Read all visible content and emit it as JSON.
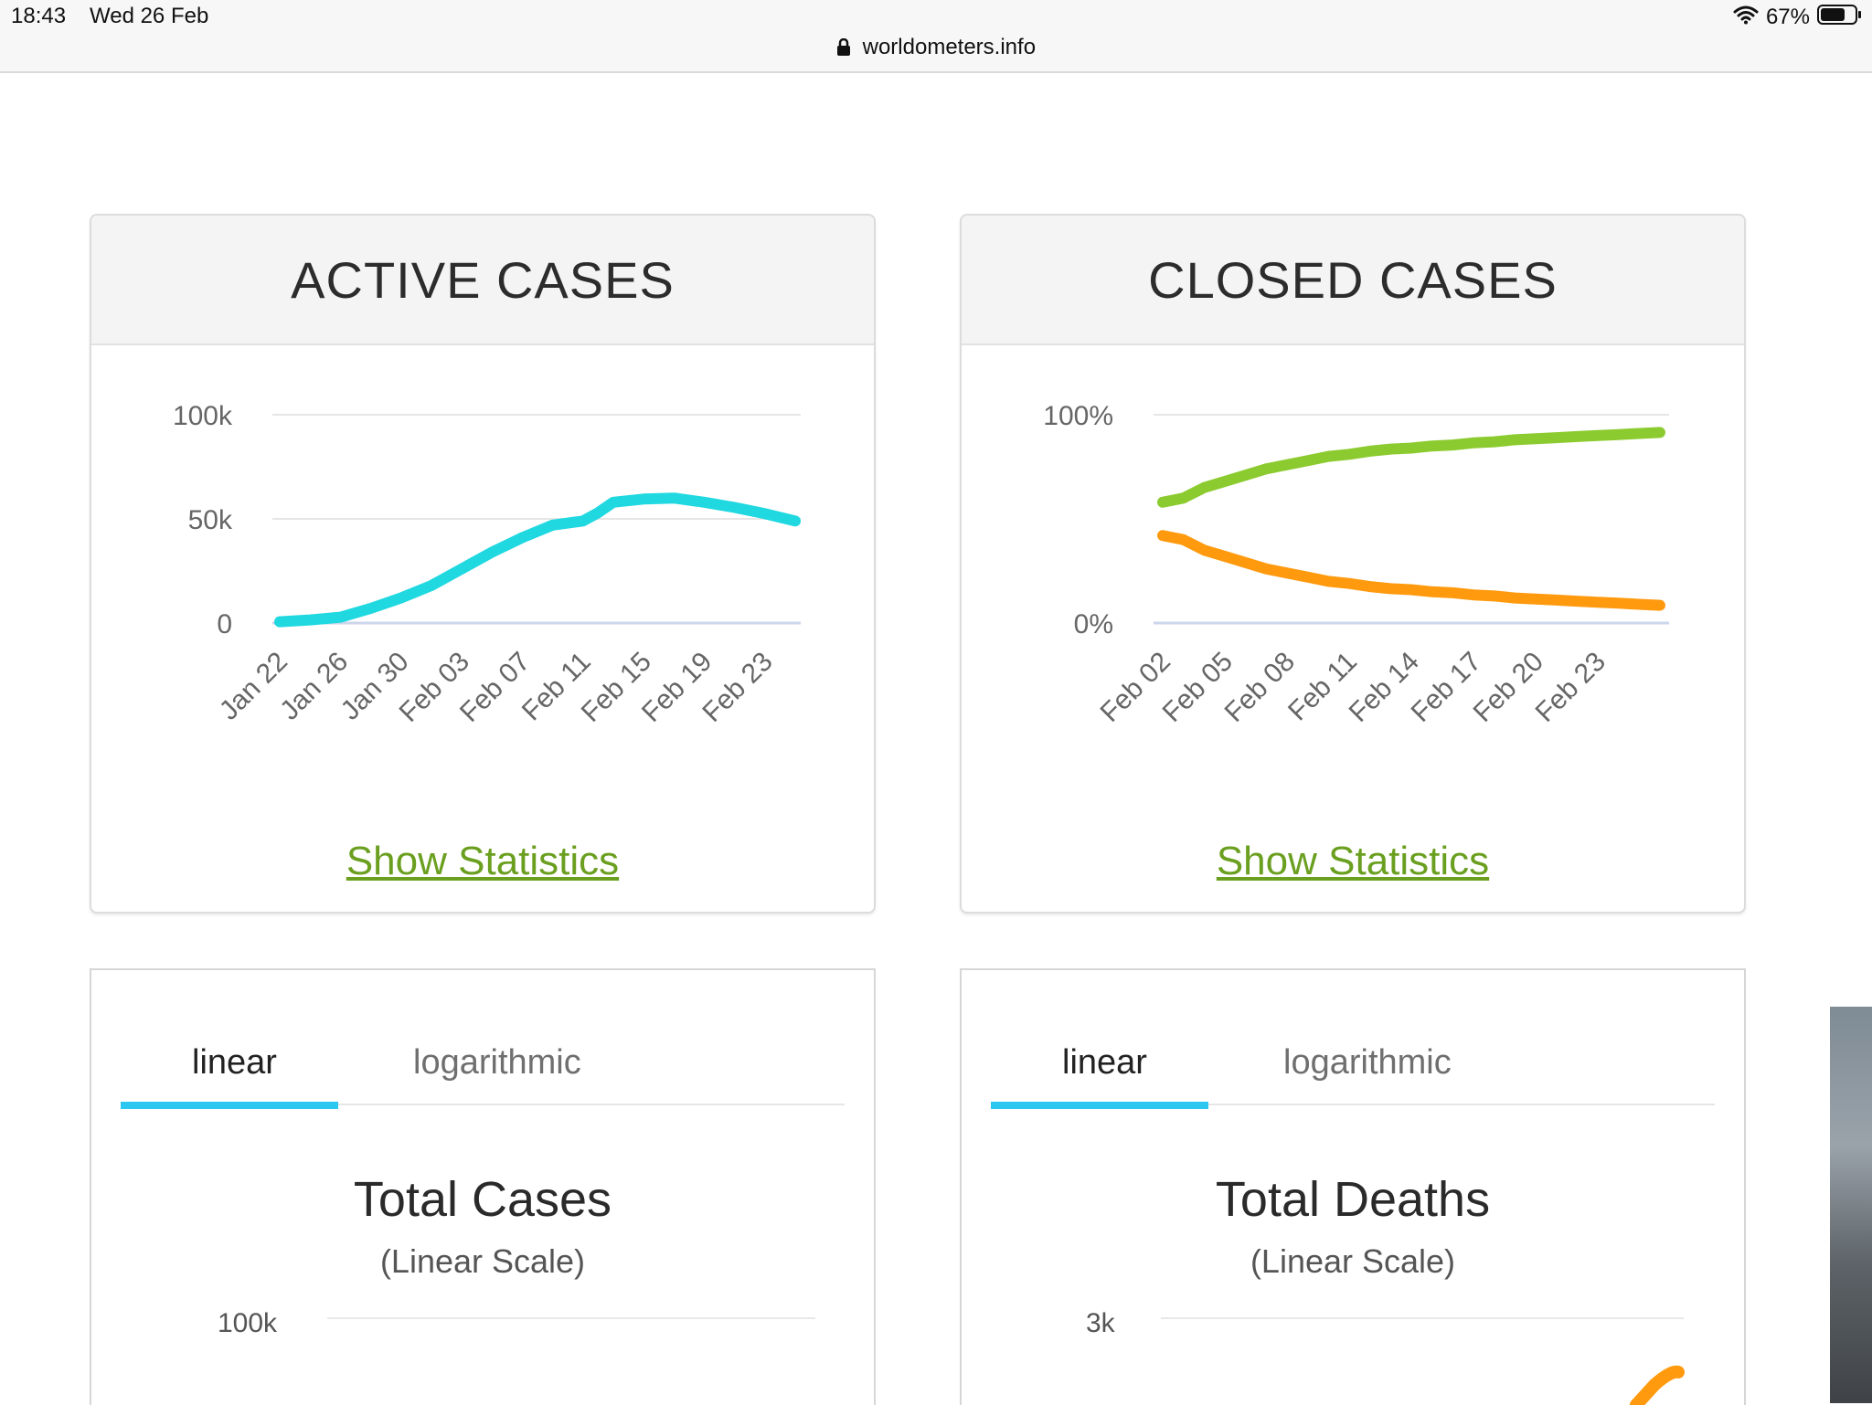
{
  "status_bar": {
    "time": "18:43",
    "date": "Wed 26 Feb",
    "url": "worldometers.info",
    "battery": "67%"
  },
  "active_cases": {
    "title": "ACTIVE CASES",
    "link": "Show Statistics",
    "chart_data": {
      "type": "line",
      "title": "ACTIVE CASES",
      "y_ticks": [
        "100k",
        "50k",
        "0"
      ],
      "ylim": [
        0,
        100000
      ],
      "x_ticks": [
        "Jan 22",
        "Jan 26",
        "Jan 30",
        "Feb 03",
        "Feb 07",
        "Feb 11",
        "Feb 15",
        "Feb 19",
        "Feb 23"
      ],
      "grid": true,
      "series": [
        {
          "color": "#1fd8e0",
          "x": [
            "Jan 22",
            "Jan 24",
            "Jan 26",
            "Jan 28",
            "Jan 30",
            "Feb 01",
            "Feb 03",
            "Feb 05",
            "Feb 07",
            "Feb 09",
            "Feb 11",
            "Feb 12",
            "Feb 13",
            "Feb 15",
            "Feb 17",
            "Feb 19",
            "Feb 21",
            "Feb 23",
            "Feb 25"
          ],
          "values": [
            600,
            1500,
            2800,
            7000,
            12000,
            18000,
            26000,
            34000,
            41000,
            47000,
            49000,
            53000,
            58000,
            59500,
            60000,
            58000,
            55500,
            52500,
            49000
          ]
        }
      ]
    }
  },
  "closed_cases": {
    "title": "CLOSED CASES",
    "link": "Show Statistics",
    "chart_data": {
      "type": "line",
      "title": "CLOSED CASES",
      "y_ticks": [
        "100%",
        "0%"
      ],
      "ylim": [
        0,
        100
      ],
      "x_ticks": [
        "Feb 02",
        "Feb 05",
        "Feb 08",
        "Feb 11",
        "Feb 14",
        "Feb 17",
        "Feb 20",
        "Feb 23"
      ],
      "grid": true,
      "series": [
        {
          "color": "#8ccb2f",
          "x": [
            "Feb 02",
            "Feb 03",
            "Feb 04",
            "Feb 05",
            "Feb 06",
            "Feb 07",
            "Feb 08",
            "Feb 09",
            "Feb 10",
            "Feb 11",
            "Feb 12",
            "Feb 13",
            "Feb 14",
            "Feb 15",
            "Feb 16",
            "Feb 17",
            "Feb 18",
            "Feb 19",
            "Feb 20",
            "Feb 21",
            "Feb 22",
            "Feb 23",
            "Feb 24",
            "Feb 25",
            "Feb 26"
          ],
          "values": [
            58,
            60,
            65,
            68,
            71,
            74,
            76,
            78,
            80,
            81,
            82.5,
            83.5,
            84,
            85,
            85.5,
            86.5,
            87,
            88,
            88.5,
            89,
            89.5,
            90,
            90.5,
            91,
            91.5
          ]
        },
        {
          "color": "#ff9a0f",
          "x": [
            "Feb 02",
            "Feb 03",
            "Feb 04",
            "Feb 05",
            "Feb 06",
            "Feb 07",
            "Feb 08",
            "Feb 09",
            "Feb 10",
            "Feb 11",
            "Feb 12",
            "Feb 13",
            "Feb 14",
            "Feb 15",
            "Feb 16",
            "Feb 17",
            "Feb 18",
            "Feb 19",
            "Feb 20",
            "Feb 21",
            "Feb 22",
            "Feb 23",
            "Feb 24",
            "Feb 25",
            "Feb 26"
          ],
          "values": [
            42,
            40,
            35,
            32,
            29,
            26,
            24,
            22,
            20,
            19,
            17.5,
            16.5,
            16,
            15,
            14.5,
            13.5,
            13,
            12,
            11.5,
            11,
            10.5,
            10,
            9.5,
            9,
            8.5
          ]
        }
      ]
    }
  },
  "total_cases": {
    "tab_linear": "linear",
    "tab_log": "logarithmic",
    "title": "Total Cases",
    "subtitle": "(Linear Scale)",
    "y_top": "100k"
  },
  "total_deaths": {
    "tab_linear": "linear",
    "tab_log": "logarithmic",
    "title": "Total Deaths",
    "subtitle": "(Linear Scale)",
    "y_top": "3k"
  },
  "colors": {
    "active_line": "#1fd8e0",
    "recovered_line": "#8ccb2f",
    "deaths_line": "#ff9a0f",
    "link": "#6a9f1f",
    "tab_active": "#2cc7f1"
  }
}
